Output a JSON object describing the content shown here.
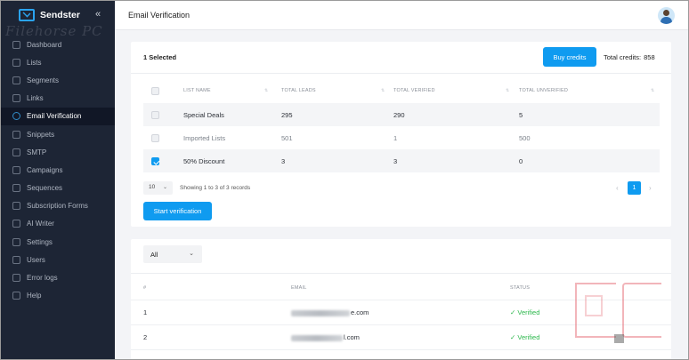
{
  "sidebar": {
    "brand": "Sendster",
    "collapse_icon": "«",
    "watermark": "Filehorse PC",
    "items": [
      {
        "label": "Dashboard",
        "icon": "dashboard-icon"
      },
      {
        "label": "Lists",
        "icon": "list-icon"
      },
      {
        "label": "Segments",
        "icon": "segments-icon"
      },
      {
        "label": "Links",
        "icon": "link-icon"
      },
      {
        "label": "Email Verification",
        "icon": "user-check-icon",
        "active": true
      },
      {
        "label": "Snippets",
        "icon": "snippets-icon"
      },
      {
        "label": "SMTP",
        "icon": "smtp-icon"
      },
      {
        "label": "Campaigns",
        "icon": "megaphone-icon"
      },
      {
        "label": "Sequences",
        "icon": "sequences-icon"
      },
      {
        "label": "Subscription Forms",
        "icon": "form-icon"
      },
      {
        "label": "AI Writer",
        "icon": "ai-writer-icon"
      },
      {
        "label": "Settings",
        "icon": "gear-icon"
      },
      {
        "label": "Users",
        "icon": "users-icon"
      },
      {
        "label": "Error logs",
        "icon": "error-log-icon"
      },
      {
        "label": "Help",
        "icon": "help-icon"
      }
    ]
  },
  "header": {
    "title": "Email Verification"
  },
  "lists_card": {
    "selected_text": "1 Selected",
    "buy_button": "Buy credits",
    "credits_label": "Total credits:",
    "credits_value": "858",
    "columns": [
      "LIST NAME",
      "TOTAL LEADS",
      "TOTAL VERIFIED",
      "TOTAL UNVERIFIED"
    ],
    "rows": [
      {
        "name": "Special Deals",
        "leads": "295",
        "verified": "290",
        "unverified": "5",
        "checked": false
      },
      {
        "name": "Imported Lists",
        "leads": "501",
        "verified": "1",
        "unverified": "500",
        "checked": false
      },
      {
        "name": "50% Discount",
        "leads": "3",
        "verified": "3",
        "unverified": "0",
        "checked": true
      }
    ],
    "per_page": "10",
    "showing": "Showing 1 to 3 of 3 records",
    "current_page": "1",
    "prev": "‹",
    "next": "›",
    "start_button": "Start verification"
  },
  "results_card": {
    "filter_value": "All",
    "columns": [
      "#",
      "EMAIL",
      "STATUS"
    ],
    "rows": [
      {
        "num": "1",
        "email_suffix": "e.com",
        "status": "✓ Verified"
      },
      {
        "num": "2",
        "email_suffix": "l.com",
        "status": "✓ Verified"
      }
    ]
  },
  "colors": {
    "accent": "#0f9bf0",
    "sidebar_bg": "#1d2535",
    "verified": "#2db84d"
  }
}
